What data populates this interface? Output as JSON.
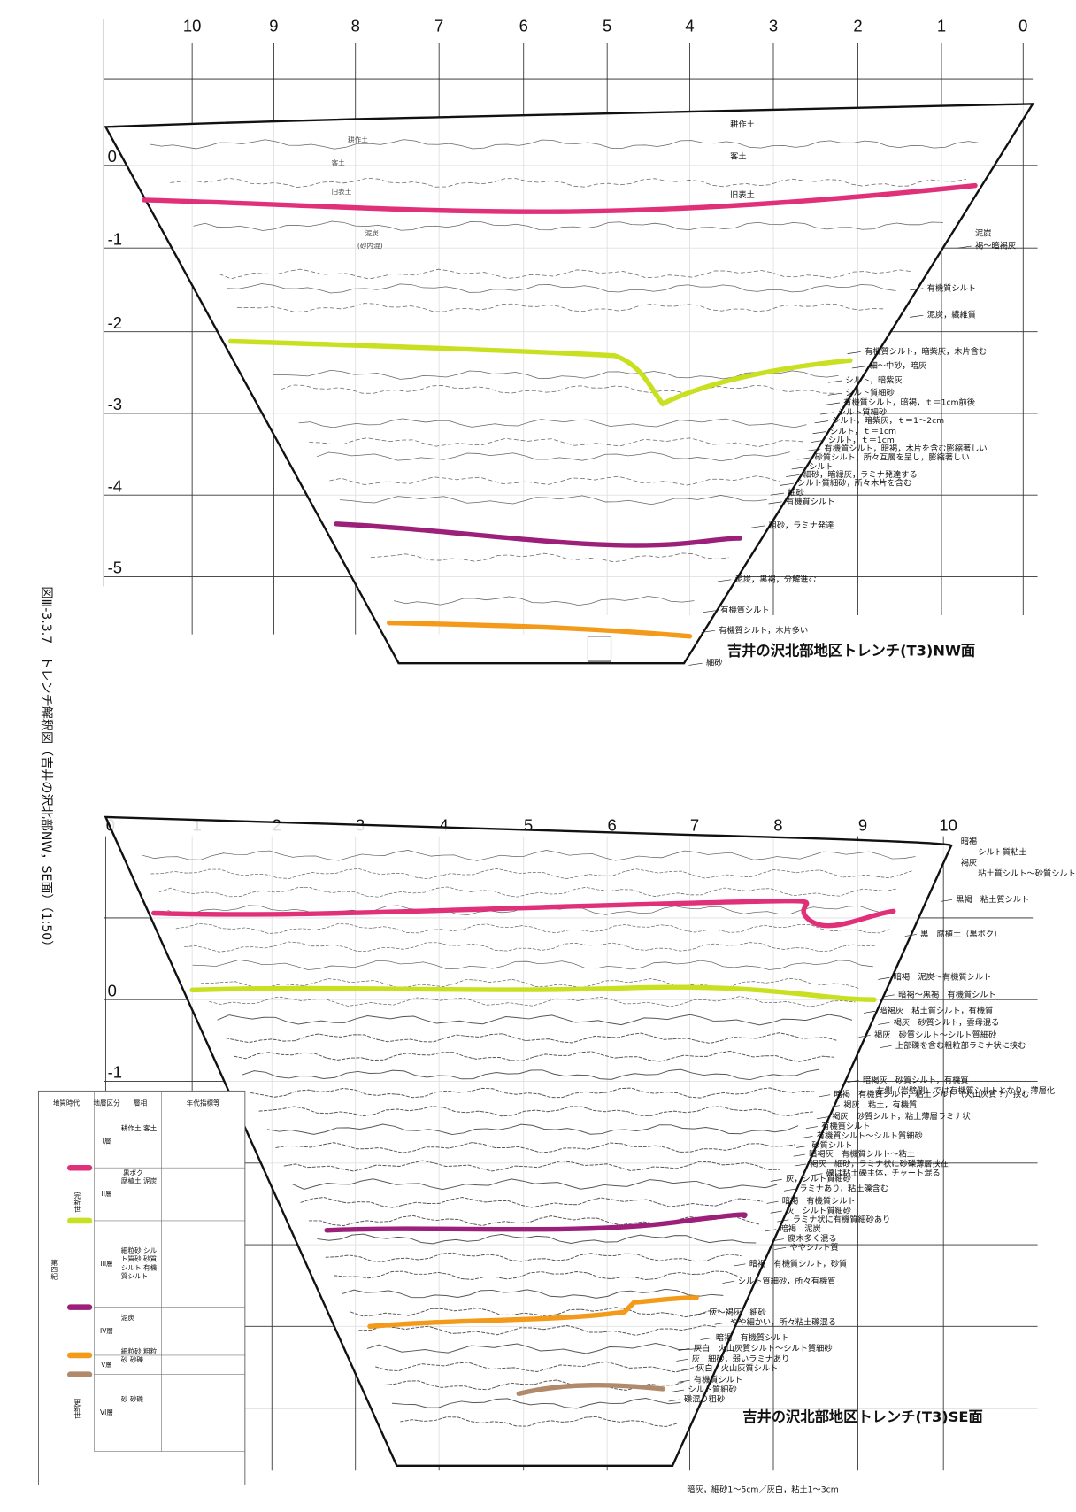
{
  "caption": "図Ⅲ-3.3.7　トレンチ解釈図（吉井の沢北部NW，SE面）（1:50）",
  "nw": {
    "title": "吉井の沢北部地区トレンチ(T3)NW面",
    "x_labels": [
      "10",
      "9",
      "8",
      "7",
      "6",
      "5",
      "4",
      "3",
      "2",
      "1",
      "0"
    ],
    "depth_labels": [
      "0",
      "-1",
      "-2",
      "-3",
      "-4",
      "-5"
    ],
    "inner_labels": [
      "耕作土",
      "客土",
      "旧表土",
      "泥炭",
      "(砂内混)"
    ],
    "notes": [
      "耕作土",
      "客土",
      "旧表土",
      "泥炭",
      "褐～暗褐灰",
      "有機質シルト",
      "泥炭，繊維質",
      "有機質シルト，暗紫灰，木片含む",
      "細～中砂，暗灰",
      "シルト，暗紫灰",
      "シルト質細砂",
      "有機質シルト，暗褐，ｔ＝1cm前後",
      "シルト質細砂",
      "シルト，暗紫灰，ｔ＝1～2cm",
      "シルト，ｔ＝1cm",
      "シルト，ｔ＝1cm",
      "有機質シルト，暗褐，木片を含む膨縮著しい",
      "砂質シルト，所々互層を呈し，膨縮著しい",
      "シルト",
      "細砂，暗緑灰，ラミナ発達する",
      "シルト質細砂，所々木片を含む",
      "細砂",
      "有機質シルト",
      "粗砂，ラミナ発達",
      "泥炭，黒褐，分解進む",
      "有機質シルト",
      "有機質シルト，木片多い",
      "細砂"
    ]
  },
  "se": {
    "title": "吉井の沢北部地区トレンチ(T3)SE面",
    "x_labels": [
      "0",
      "1",
      "2",
      "3",
      "4",
      "5",
      "6",
      "7",
      "8",
      "9",
      "10"
    ],
    "depth_labels": [
      "0",
      "-1"
    ],
    "notes": [
      "暗褐",
      "シルト質粘土",
      "褐灰",
      "粘土質シルト～砂質シルト",
      "黒褐　粘土質シルト",
      "黒　腐植土（黒ボク）",
      "暗褐　泥炭～有機質シルト",
      "暗褐～黒褐　有機質シルト",
      "暗褐灰　粘土質シルト，有機質",
      "褐灰　砂質シルト，雲母混る",
      "褐灰　砂質シルト～シルト質細砂",
      "上部礫を含む粗粒部ラミナ状に挟む",
      "暗褐灰　砂質シルト，有機質",
      "左側（岩壁側）では有機質シルトとなり，薄層化",
      "暗褐　有機質シルト，粘土シルト（火山灰質？）挟む",
      "褐灰　粘土，有機質",
      "褐灰　砂質シルト，粘土薄層ラミナ状",
      "有機質シルト",
      "有機質シルト～シルト質細砂",
      "砂質シルト",
      "暗褐灰　有機質シルト～粘土",
      "褐灰　細砂，ラミナ状に砂礫薄層挟在",
      "礫は粘土礫主体，チャート混る",
      "灰，シルト質細砂",
      "ラミナあり，粘土礫含む",
      "暗褐　有機質シルト",
      "灰　シルト質細砂",
      "ラミナ状に有機質細砂あり",
      "暗褐　泥炭",
      "腐木多く混る",
      "ややシルト質",
      "暗褐　有機質シルト，砂質",
      "シルト質細砂，所々有機質",
      "灰～褐灰　細砂",
      "やや細かい，所々粘土礫混る",
      "暗褐　有機質シルト",
      "灰白　火山灰質シルト～シルト質細砂",
      "灰　細砂，弱いラミナあり",
      "灰白　火山灰質シルト",
      "有機質シルト",
      "シルト質細砂",
      "礫混り粗砂",
      "暗灰，細砂1～5cm／灰白，粘土1～3cm"
    ]
  },
  "legend": {
    "headers": [
      "地質時代",
      "地層区分",
      "層相",
      "年代指標等"
    ],
    "eras": [
      "第四紀",
      "完新世",
      "更新世"
    ],
    "rows": [
      {
        "unit": "I層",
        "facies": "耕作土 客土"
      },
      {
        "unit": "II層",
        "facies": "腐植土 泥炭",
        "top": "黒ボク"
      },
      {
        "unit": "III層",
        "facies": "細粒砂 シルト質砂 砂質シルト 有機質シルト"
      },
      {
        "unit": "IV層",
        "facies": "泥炭"
      },
      {
        "unit": "V層",
        "facies": "細粒砂 粗粒砂 砂礫"
      },
      {
        "unit": "VI層",
        "facies": "砂 砂礫"
      }
    ]
  }
}
